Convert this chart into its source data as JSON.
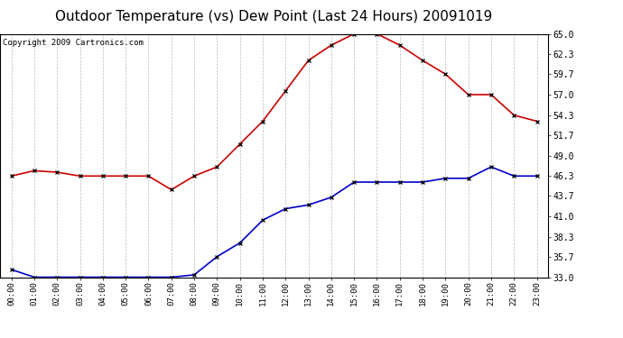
{
  "title": "Outdoor Temperature (vs) Dew Point (Last 24 Hours) 20091019",
  "copyright": "Copyright 2009 Cartronics.com",
  "hours": [
    "00:00",
    "01:00",
    "02:00",
    "03:00",
    "04:00",
    "05:00",
    "06:00",
    "07:00",
    "08:00",
    "09:00",
    "10:00",
    "11:00",
    "12:00",
    "13:00",
    "14:00",
    "15:00",
    "16:00",
    "17:00",
    "18:00",
    "19:00",
    "20:00",
    "21:00",
    "22:00",
    "23:00"
  ],
  "temp": [
    46.3,
    47.0,
    46.8,
    46.3,
    46.3,
    46.3,
    46.3,
    44.5,
    46.3,
    47.5,
    50.5,
    53.5,
    57.5,
    61.5,
    63.5,
    65.0,
    65.0,
    63.5,
    61.5,
    59.7,
    57.0,
    57.0,
    54.3,
    53.5
  ],
  "dewpoint": [
    34.0,
    33.0,
    33.0,
    33.0,
    33.0,
    33.0,
    33.0,
    33.0,
    33.3,
    35.7,
    37.5,
    40.5,
    42.0,
    42.5,
    43.5,
    45.5,
    45.5,
    45.5,
    45.5,
    46.0,
    46.0,
    47.5,
    46.3,
    46.3
  ],
  "temp_color": "#cc0000",
  "dew_color": "#0000cc",
  "marker_color": "#000000",
  "bg_color": "#ffffff",
  "grid_color": "#bbbbbb",
  "ylim": [
    33.0,
    65.0
  ],
  "yticks": [
    33.0,
    35.7,
    38.3,
    41.0,
    43.7,
    46.3,
    49.0,
    51.7,
    54.3,
    57.0,
    59.7,
    62.3,
    65.0
  ],
  "title_fontsize": 11,
  "copyright_fontsize": 6.5
}
